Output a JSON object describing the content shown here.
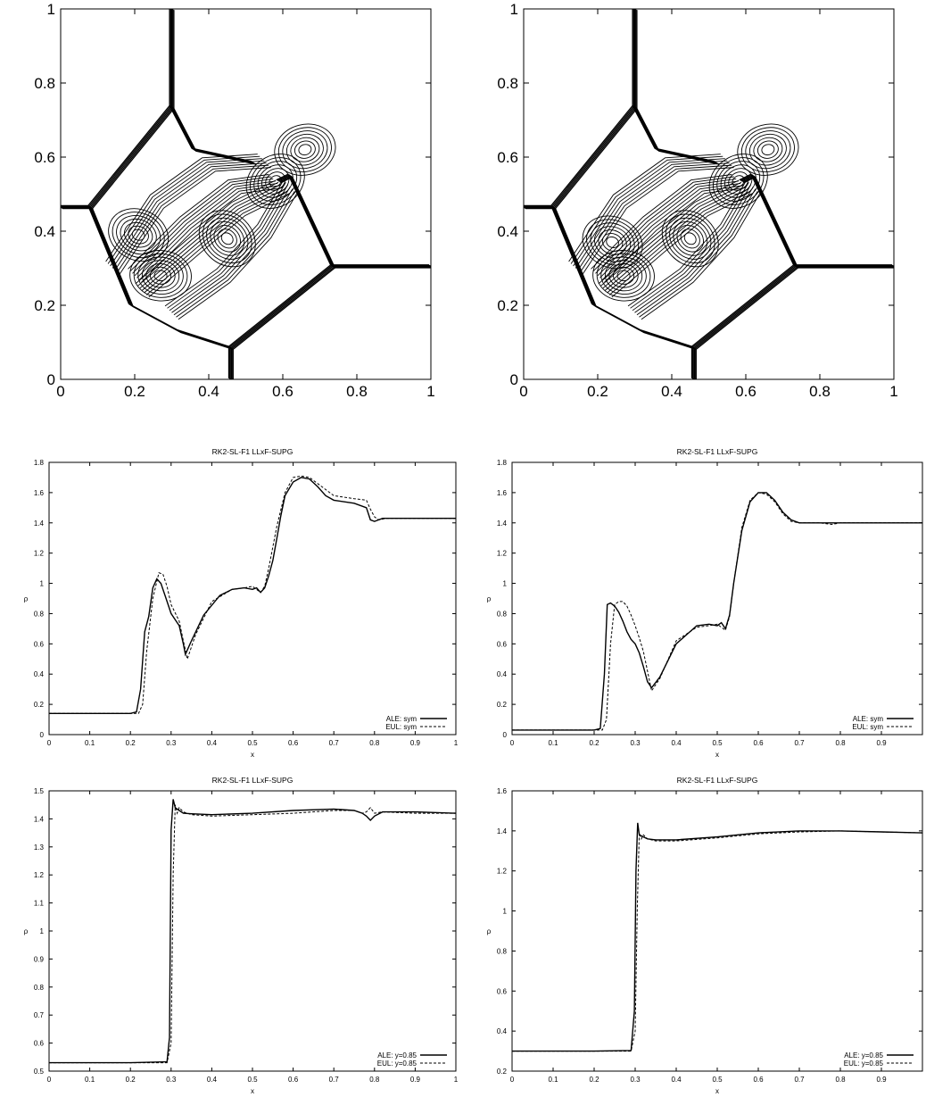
{
  "chart_data": [
    {
      "type": "contour",
      "xlim": [
        0,
        1
      ],
      "ylim": [
        0,
        1
      ],
      "xticks": [
        "0",
        "0.2",
        "0.4",
        "0.6",
        "0.8",
        "1"
      ],
      "yticks": [
        "0",
        "0.2",
        "0.4",
        "0.6",
        "0.8",
        "1"
      ],
      "grid": false,
      "features": {
        "shock_lines": [
          [
            [
              0.3,
              1.0
            ],
            [
              0.3,
              0.735
            ]
          ],
          [
            [
              0.3,
              0.735
            ],
            [
              0.08,
              0.465
            ]
          ],
          [
            [
              0.0,
              0.465
            ],
            [
              0.08,
              0.465
            ]
          ],
          [
            [
              0.08,
              0.465
            ],
            [
              0.19,
              0.2
            ],
            [
              0.32,
              0.13
            ],
            [
              0.46,
              0.085
            ]
          ],
          [
            [
              0.46,
              0.085
            ],
            [
              0.46,
              0.0
            ]
          ],
          [
            [
              0.46,
              0.085
            ],
            [
              0.735,
              0.305
            ]
          ],
          [
            [
              0.735,
              0.305
            ],
            [
              1.0,
              0.305
            ]
          ],
          [
            [
              0.735,
              0.305
            ],
            [
              0.62,
              0.55
            ],
            [
              0.59,
              0.535
            ]
          ],
          [
            [
              0.3,
              0.735
            ],
            [
              0.36,
              0.62
            ],
            [
              0.52,
              0.585
            ]
          ]
        ],
        "vortices": [
          [
            0.58,
            0.535
          ],
          [
            0.66,
            0.62
          ],
          [
            0.27,
            0.28
          ],
          [
            0.21,
            0.39
          ],
          [
            0.45,
            0.38
          ]
        ]
      }
    },
    {
      "type": "contour",
      "xlim": [
        0,
        1
      ],
      "ylim": [
        0,
        1
      ],
      "xticks": [
        "0",
        "0.2",
        "0.4",
        "0.6",
        "0.8",
        "1"
      ],
      "yticks": [
        "0",
        "0.2",
        "0.4",
        "0.6",
        "0.8",
        "1"
      ],
      "grid": false,
      "features": {
        "shock_lines": [
          [
            [
              0.3,
              1.0
            ],
            [
              0.3,
              0.735
            ]
          ],
          [
            [
              0.3,
              0.735
            ],
            [
              0.08,
              0.465
            ]
          ],
          [
            [
              0.0,
              0.465
            ],
            [
              0.08,
              0.465
            ]
          ],
          [
            [
              0.08,
              0.465
            ],
            [
              0.19,
              0.2
            ],
            [
              0.32,
              0.13
            ],
            [
              0.46,
              0.085
            ]
          ],
          [
            [
              0.46,
              0.085
            ],
            [
              0.46,
              0.0
            ]
          ],
          [
            [
              0.46,
              0.085
            ],
            [
              0.735,
              0.305
            ]
          ],
          [
            [
              0.735,
              0.305
            ],
            [
              1.0,
              0.305
            ]
          ],
          [
            [
              0.735,
              0.305
            ],
            [
              0.62,
              0.55
            ],
            [
              0.59,
              0.535
            ]
          ],
          [
            [
              0.3,
              0.735
            ],
            [
              0.36,
              0.62
            ],
            [
              0.52,
              0.585
            ]
          ]
        ],
        "vortices": [
          [
            0.58,
            0.535
          ],
          [
            0.66,
            0.62
          ],
          [
            0.27,
            0.28
          ],
          [
            0.24,
            0.37
          ],
          [
            0.45,
            0.38
          ]
        ]
      }
    },
    {
      "type": "line",
      "title": "RK2-SL-F1 LLxF-SUPG",
      "xlabel": "x",
      "ylabel": "ρ",
      "xlim": [
        0,
        1
      ],
      "ylim": [
        0,
        1.8
      ],
      "xticks": [
        "0",
        "0.1",
        "0.2",
        "0.3",
        "0.4",
        "0.5",
        "0.6",
        "0.7",
        "0.8",
        "0.9",
        "1"
      ],
      "yticks": [
        "0",
        "0.2",
        "0.4",
        "0.6",
        "0.8",
        "1",
        "1.2",
        "1.4",
        "1.6",
        "1.8"
      ],
      "legend": "bottom-right",
      "series": [
        {
          "name": "ALE: sym",
          "style": "solid",
          "x": [
            0,
            0.2,
            0.215,
            0.225,
            0.235,
            0.245,
            0.255,
            0.265,
            0.275,
            0.285,
            0.3,
            0.32,
            0.33,
            0.335,
            0.35,
            0.38,
            0.42,
            0.45,
            0.48,
            0.5,
            0.51,
            0.52,
            0.53,
            0.54,
            0.55,
            0.56,
            0.57,
            0.58,
            0.6,
            0.62,
            0.64,
            0.66,
            0.68,
            0.7,
            0.75,
            0.78,
            0.79,
            0.8,
            0.82,
            0.85,
            0.9,
            1.0
          ],
          "y": [
            0.14,
            0.14,
            0.15,
            0.3,
            0.68,
            0.78,
            0.97,
            1.03,
            1.0,
            0.92,
            0.8,
            0.72,
            0.6,
            0.53,
            0.62,
            0.79,
            0.92,
            0.96,
            0.97,
            0.96,
            0.97,
            0.94,
            0.97,
            1.05,
            1.15,
            1.3,
            1.45,
            1.58,
            1.67,
            1.7,
            1.69,
            1.64,
            1.58,
            1.55,
            1.53,
            1.5,
            1.42,
            1.41,
            1.43,
            1.43,
            1.43,
            1.43
          ]
        },
        {
          "name": "EUL: sym",
          "style": "dashed",
          "x": [
            0,
            0.2,
            0.22,
            0.23,
            0.24,
            0.255,
            0.27,
            0.28,
            0.29,
            0.3,
            0.32,
            0.33,
            0.34,
            0.36,
            0.4,
            0.45,
            0.48,
            0.5,
            0.52,
            0.53,
            0.54,
            0.56,
            0.58,
            0.6,
            0.62,
            0.64,
            0.66,
            0.7,
            0.75,
            0.78,
            0.79,
            0.8,
            0.81,
            0.83,
            0.9,
            1.0
          ],
          "y": [
            0.14,
            0.14,
            0.14,
            0.2,
            0.55,
            0.9,
            1.07,
            1.06,
            0.98,
            0.86,
            0.75,
            0.62,
            0.5,
            0.66,
            0.88,
            0.96,
            0.97,
            0.98,
            0.94,
            0.98,
            1.1,
            1.38,
            1.6,
            1.7,
            1.71,
            1.7,
            1.66,
            1.58,
            1.56,
            1.55,
            1.49,
            1.44,
            1.42,
            1.43,
            1.43,
            1.43
          ]
        }
      ]
    },
    {
      "type": "line",
      "title": "RK2-SL-F1 LLxF-SUPG",
      "xlabel": "x",
      "ylabel": "ρ",
      "xlim": [
        0,
        1
      ],
      "ylim": [
        0,
        1.8
      ],
      "xticks": [
        "0",
        "0.1",
        "0.2",
        "0.3",
        "0.4",
        "0.5",
        "0.6",
        "0.7",
        "0.8",
        "0.9"
      ],
      "yticks": [
        "0",
        "0.2",
        "0.4",
        "0.6",
        "0.8",
        "1",
        "1.2",
        "1.4",
        "1.6",
        "1.8"
      ],
      "legend": "bottom-right",
      "series": [
        {
          "name": "ALE: sym",
          "style": "solid",
          "x": [
            0,
            0.2,
            0.215,
            0.225,
            0.232,
            0.24,
            0.25,
            0.26,
            0.27,
            0.28,
            0.29,
            0.3,
            0.31,
            0.32,
            0.33,
            0.34,
            0.36,
            0.4,
            0.45,
            0.48,
            0.5,
            0.51,
            0.52,
            0.53,
            0.54,
            0.56,
            0.58,
            0.6,
            0.62,
            0.64,
            0.66,
            0.68,
            0.7,
            0.75,
            0.8,
            0.9,
            1.0
          ],
          "y": [
            0.03,
            0.03,
            0.04,
            0.4,
            0.86,
            0.87,
            0.85,
            0.81,
            0.75,
            0.68,
            0.63,
            0.6,
            0.54,
            0.45,
            0.35,
            0.31,
            0.38,
            0.6,
            0.72,
            0.73,
            0.72,
            0.74,
            0.7,
            0.79,
            1.0,
            1.35,
            1.54,
            1.6,
            1.6,
            1.55,
            1.47,
            1.42,
            1.4,
            1.4,
            1.4,
            1.4,
            1.4
          ]
        },
        {
          "name": "EUL: sym",
          "style": "dashed",
          "x": [
            0,
            0.2,
            0.22,
            0.23,
            0.24,
            0.25,
            0.26,
            0.27,
            0.28,
            0.29,
            0.3,
            0.31,
            0.32,
            0.33,
            0.34,
            0.36,
            0.4,
            0.45,
            0.48,
            0.5,
            0.52,
            0.53,
            0.54,
            0.56,
            0.58,
            0.6,
            0.62,
            0.64,
            0.66,
            0.68,
            0.7,
            0.75,
            0.78,
            0.8,
            0.9,
            1.0
          ],
          "y": [
            0.03,
            0.03,
            0.03,
            0.1,
            0.6,
            0.86,
            0.88,
            0.88,
            0.85,
            0.79,
            0.72,
            0.64,
            0.55,
            0.42,
            0.29,
            0.37,
            0.62,
            0.71,
            0.72,
            0.73,
            0.69,
            0.78,
            1.0,
            1.37,
            1.55,
            1.6,
            1.59,
            1.54,
            1.46,
            1.41,
            1.4,
            1.4,
            1.39,
            1.4,
            1.4,
            1.4
          ]
        }
      ]
    },
    {
      "type": "line",
      "title": "RK2-SL-F1 LLxF-SUPG",
      "xlabel": "x",
      "ylabel": "ρ",
      "xlim": [
        0,
        1
      ],
      "ylim": [
        0.5,
        1.5
      ],
      "xticks": [
        "0",
        "0.1",
        "0.2",
        "0.3",
        "0.4",
        "0.5",
        "0.6",
        "0.7",
        "0.8",
        "0.9",
        "1"
      ],
      "yticks": [
        "0.5",
        "0.6",
        "0.7",
        "0.8",
        "0.9",
        "1",
        "1.1",
        "1.2",
        "1.3",
        "1.4",
        "1.5"
      ],
      "legend": "bottom-right",
      "series": [
        {
          "name": "ALE: y=0.85",
          "style": "solid",
          "x": [
            0,
            0.1,
            0.2,
            0.29,
            0.296,
            0.3,
            0.305,
            0.31,
            0.32,
            0.33,
            0.35,
            0.4,
            0.5,
            0.6,
            0.7,
            0.75,
            0.77,
            0.78,
            0.79,
            0.8,
            0.82,
            0.9,
            1.0
          ],
          "y": [
            0.53,
            0.53,
            0.53,
            0.533,
            0.62,
            1.36,
            1.47,
            1.44,
            1.43,
            1.42,
            1.418,
            1.415,
            1.42,
            1.43,
            1.435,
            1.43,
            1.42,
            1.41,
            1.395,
            1.41,
            1.425,
            1.425,
            1.42
          ]
        },
        {
          "name": "EUL: y=0.85",
          "style": "dashed",
          "x": [
            0,
            0.1,
            0.2,
            0.29,
            0.3,
            0.305,
            0.31,
            0.315,
            0.32,
            0.33,
            0.35,
            0.4,
            0.5,
            0.6,
            0.7,
            0.75,
            0.77,
            0.78,
            0.79,
            0.8,
            0.82,
            0.9,
            1.0
          ],
          "y": [
            0.53,
            0.53,
            0.53,
            0.53,
            0.6,
            1.2,
            1.45,
            1.42,
            1.44,
            1.425,
            1.415,
            1.41,
            1.415,
            1.42,
            1.43,
            1.43,
            1.42,
            1.425,
            1.44,
            1.42,
            1.425,
            1.42,
            1.42
          ]
        }
      ]
    },
    {
      "type": "line",
      "title": "RK2-SL-F1 LLxF-SUPG",
      "xlabel": "x",
      "ylabel": "ρ",
      "xlim": [
        0,
        1
      ],
      "ylim": [
        0.2,
        1.6
      ],
      "xticks": [
        "0",
        "0.1",
        "0.2",
        "0.3",
        "0.4",
        "0.5",
        "0.6",
        "0.7",
        "0.8",
        "0.9"
      ],
      "yticks": [
        "0.2",
        "0.4",
        "0.6",
        "0.8",
        "1",
        "1.2",
        "1.4",
        "1.6"
      ],
      "legend": "bottom-right",
      "series": [
        {
          "name": "ALE: y=0.85",
          "style": "solid",
          "x": [
            0,
            0.1,
            0.2,
            0.29,
            0.298,
            0.302,
            0.306,
            0.31,
            0.32,
            0.33,
            0.35,
            0.4,
            0.5,
            0.6,
            0.7,
            0.8,
            0.9,
            1.0
          ],
          "y": [
            0.3,
            0.3,
            0.3,
            0.303,
            0.5,
            1.2,
            1.44,
            1.38,
            1.37,
            1.36,
            1.355,
            1.355,
            1.37,
            1.39,
            1.4,
            1.4,
            1.395,
            1.39
          ]
        },
        {
          "name": "EUL: y=0.85",
          "style": "dashed",
          "x": [
            0,
            0.1,
            0.2,
            0.29,
            0.3,
            0.305,
            0.31,
            0.315,
            0.32,
            0.33,
            0.35,
            0.4,
            0.5,
            0.6,
            0.7,
            0.8,
            0.9,
            1.0
          ],
          "y": [
            0.3,
            0.3,
            0.3,
            0.3,
            0.4,
            1.0,
            1.39,
            1.36,
            1.38,
            1.36,
            1.35,
            1.35,
            1.365,
            1.385,
            1.395,
            1.4,
            1.395,
            1.39
          ]
        }
      ]
    }
  ]
}
